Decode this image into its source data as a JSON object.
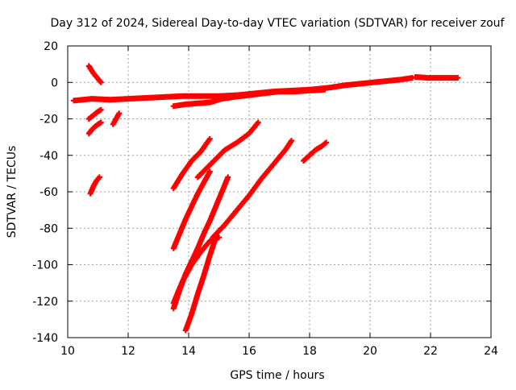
{
  "chart_data": {
    "type": "scatter",
    "title": "Day 312 of 2024, Sidereal Day-to-day VTEC variation (SDTVAR) for receiver zouf",
    "xlabel": "GPS time / hours",
    "ylabel": "SDTVAR / TECUs",
    "xlim": [
      10,
      24
    ],
    "ylim": [
      -140,
      20
    ],
    "xticks": [
      10,
      12,
      14,
      16,
      18,
      20,
      22,
      24
    ],
    "yticks": [
      -140,
      -120,
      -100,
      -80,
      -60,
      -40,
      -20,
      0,
      20
    ],
    "grid": true,
    "marker": "+",
    "color": "#ff0000",
    "series": [
      {
        "x": [
          10.2,
          10.8,
          11.4,
          12.0,
          12.6,
          13.2,
          13.8,
          14.4,
          15.0,
          15.6,
          16.2,
          16.8,
          17.4,
          18.0,
          18.6,
          19.2,
          19.8,
          20.4,
          21.0,
          21.4
        ],
        "y": [
          -10,
          -9,
          -9.5,
          -9,
          -8.5,
          -8,
          -7.5,
          -7.5,
          -7.5,
          -7,
          -6,
          -5,
          -4.5,
          -4,
          -3,
          -1.5,
          -0.5,
          0.5,
          1.5,
          2.5
        ]
      },
      {
        "x": [
          13.5,
          13.9,
          14.3,
          14.7,
          15.1,
          15.5,
          16.0,
          16.5,
          17.0,
          17.5,
          18.0,
          18.5
        ],
        "y": [
          -13,
          -12,
          -11.5,
          -11,
          -9,
          -8,
          -7,
          -6,
          -5,
          -5,
          -4.5,
          -4
        ]
      },
      {
        "x": [
          21.5,
          21.9,
          22.3,
          22.7,
          22.9
        ],
        "y": [
          3,
          2.5,
          2.5,
          2.5,
          2.5
        ]
      },
      {
        "x": [
          10.7,
          10.85,
          11.0,
          11.1
        ],
        "y": [
          9,
          5,
          2,
          0
        ]
      },
      {
        "x": [
          10.7,
          10.85,
          11.0,
          11.1
        ],
        "y": [
          -28,
          -25,
          -23,
          -22
        ]
      },
      {
        "x": [
          10.7,
          10.85,
          11.0,
          11.1
        ],
        "y": [
          -20,
          -18,
          -16,
          -15
        ]
      },
      {
        "x": [
          10.75,
          10.85,
          10.95,
          11.05
        ],
        "y": [
          -61,
          -57,
          -54,
          -52
        ]
      },
      {
        "x": [
          11.5,
          11.6,
          11.7
        ],
        "y": [
          -23,
          -20,
          -17
        ]
      },
      {
        "x": [
          13.5,
          13.8,
          14.1,
          14.4,
          14.7
        ],
        "y": [
          -58,
          -50,
          -43,
          -38,
          -31
        ]
      },
      {
        "x": [
          13.5,
          13.7,
          13.9,
          14.1,
          14.3,
          14.5,
          14.7
        ],
        "y": [
          -91,
          -83,
          -75,
          -68,
          -61,
          -55,
          -49
        ]
      },
      {
        "x": [
          14.3,
          14.6,
          14.9,
          15.2,
          15.6,
          16.0,
          16.3
        ],
        "y": [
          -52,
          -47,
          -42,
          -37,
          -33,
          -28,
          -22
        ]
      },
      {
        "x": [
          13.5,
          13.7,
          13.9,
          14.1,
          14.3,
          14.5,
          14.7,
          14.9,
          15.1,
          15.3
        ],
        "y": [
          -124,
          -114,
          -105,
          -98,
          -91,
          -83,
          -76,
          -68,
          -60,
          -52
        ]
      },
      {
        "x": [
          14.8,
          15.2,
          15.6,
          16.0,
          16.4,
          16.8,
          17.2,
          17.4
        ],
        "y": [
          -85,
          -78,
          -70,
          -62,
          -53,
          -45,
          -37,
          -32
        ]
      },
      {
        "x": [
          13.5,
          13.8,
          14.1,
          14.4,
          14.7,
          15.0
        ],
        "y": [
          -121,
          -109,
          -100,
          -93,
          -87,
          -85
        ]
      },
      {
        "x": [
          13.9,
          14.1,
          14.3,
          14.5,
          14.7,
          14.9
        ],
        "y": [
          -136,
          -127,
          -116,
          -106,
          -95,
          -85
        ]
      },
      {
        "x": [
          17.8,
          18.0,
          18.2,
          18.4,
          18.55
        ],
        "y": [
          -43,
          -40,
          -37,
          -35,
          -33
        ]
      }
    ]
  }
}
